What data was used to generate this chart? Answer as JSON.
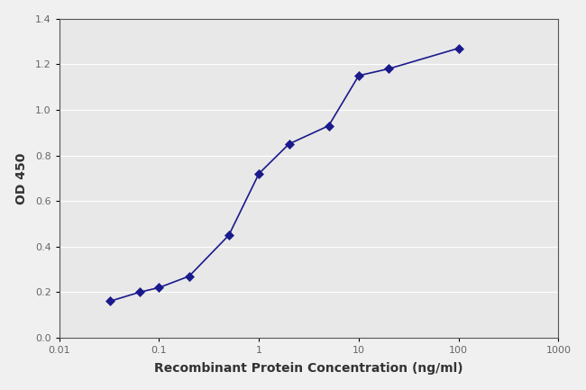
{
  "x_values": [
    0.032,
    0.064,
    0.1,
    0.2,
    0.5,
    1.0,
    2.0,
    5.0,
    10.0,
    20.0,
    100.0
  ],
  "y_values": [
    0.16,
    0.2,
    0.22,
    0.27,
    0.45,
    0.72,
    0.85,
    0.93,
    1.15,
    1.18,
    1.27
  ],
  "line_color": "#1a1a8c",
  "marker_color": "#1a1a8c",
  "marker": "D",
  "marker_size": 5,
  "line_width": 1.2,
  "xlabel": "Recombinant Protein Concentration (ng/ml)",
  "ylabel": "OD 450",
  "xlim": [
    0.01,
    1000
  ],
  "ylim": [
    0.0,
    1.4
  ],
  "yticks": [
    0.0,
    0.2,
    0.4,
    0.6,
    0.8,
    1.0,
    1.2,
    1.4
  ],
  "xticks": [
    0.01,
    0.1,
    1,
    10,
    100,
    1000
  ],
  "xtick_labels": [
    "0.01",
    "0.1",
    "1",
    "10",
    "100",
    "1000"
  ],
  "plot_bg_color": "#e8e8e8",
  "fig_bg_color": "#f0f0f0",
  "grid_color": "#ffffff",
  "xlabel_fontsize": 10,
  "ylabel_fontsize": 10,
  "tick_fontsize": 8,
  "xlabel_fontweight": "bold",
  "ylabel_fontweight": "bold",
  "tick_color": "#666666",
  "label_color": "#333333"
}
